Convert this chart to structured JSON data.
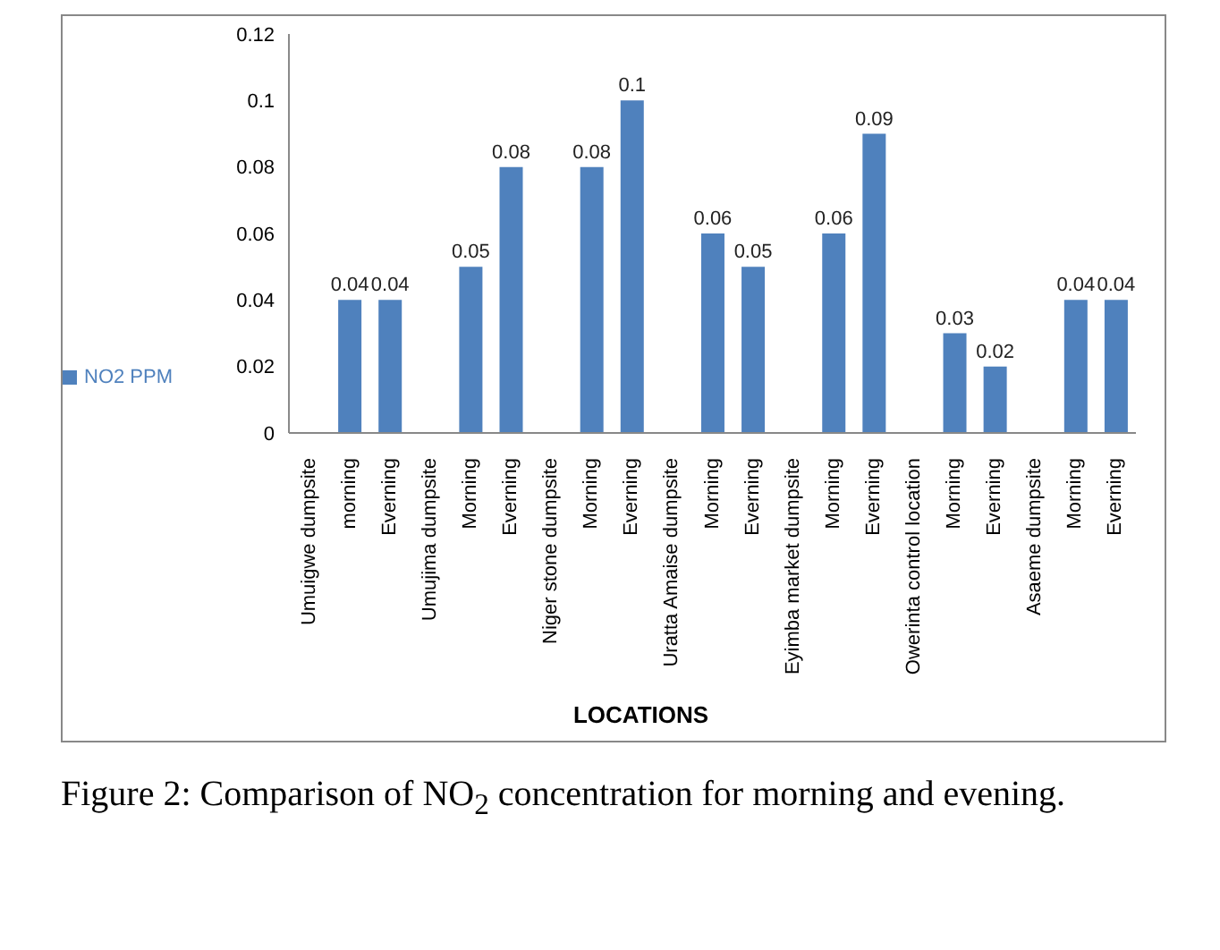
{
  "chart_data": {
    "type": "bar",
    "xlabel": "LOCATIONS",
    "categories": [
      "Umuigwe dumpsite",
      "morning",
      "Everning",
      "Umujima dumpsite",
      "Morning",
      "Everning",
      "Niger stone dumpsite",
      "Morning",
      "Everning",
      "Uratta Amaise dumpsite",
      "Morning",
      "Everning",
      "Eyimba market dumpsite",
      "Morning",
      "Everning",
      "Owerinta control location",
      "Morning",
      "Everning",
      "Asaeme dumpsite",
      "Morning",
      "Everning"
    ],
    "series": [
      {
        "name": "NO2 PPM",
        "color": "#4f81bd",
        "values": [
          null,
          0.04,
          0.04,
          null,
          0.05,
          0.08,
          null,
          0.08,
          0.1,
          null,
          0.06,
          0.05,
          null,
          0.06,
          0.09,
          null,
          0.03,
          0.02,
          null,
          0.04,
          0.04
        ]
      }
    ],
    "ylim": [
      0,
      0.12
    ],
    "yticks": [
      0,
      0.02,
      0.04,
      0.06,
      0.08,
      0.1,
      0.12
    ],
    "data_labels": true,
    "grid": false,
    "legend": "left",
    "annotations": [
      "Figure 2: Comparison of NO$_{2}$ concentration for morning and evening."
    ]
  }
}
